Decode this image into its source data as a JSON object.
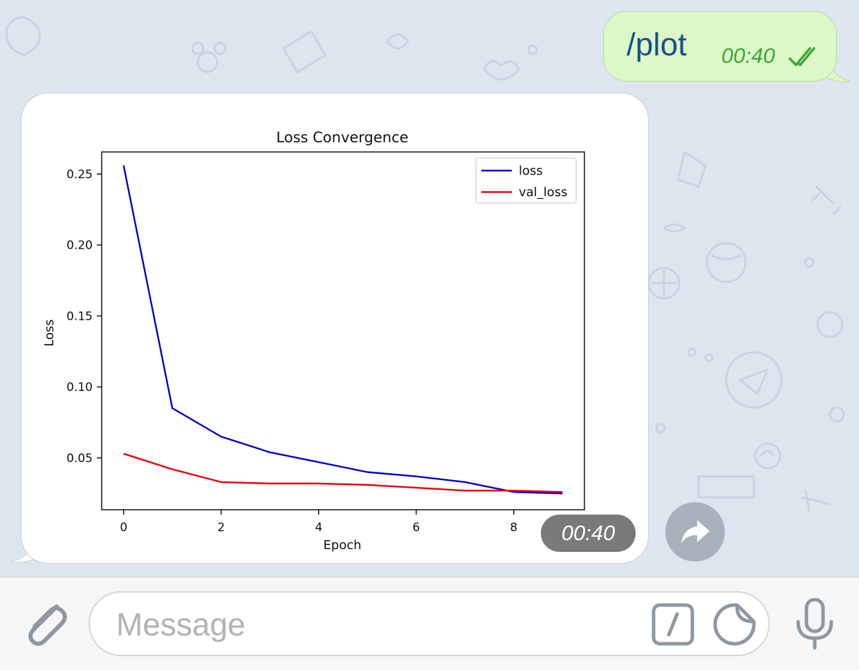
{
  "chat": {
    "outgoing": {
      "text": "/plot",
      "time": "00:40",
      "status_icon": "double-check-icon"
    },
    "incoming_photo": {
      "time": "00:40"
    }
  },
  "chart_data": {
    "type": "line",
    "title": "Loss Convergence",
    "xlabel": "Epoch",
    "ylabel": "Loss",
    "x": [
      0,
      1,
      2,
      3,
      4,
      5,
      6,
      7,
      8,
      9
    ],
    "xticks": [
      0,
      2,
      4,
      6,
      8
    ],
    "yticks": [
      0.05,
      0.1,
      0.15,
      0.2,
      0.25
    ],
    "ytick_labels": [
      "0.05",
      "0.10",
      "0.15",
      "0.20",
      "0.25"
    ],
    "xlim": [
      -0.45,
      9.45
    ],
    "ylim": [
      0.0135,
      0.2655
    ],
    "legend_position": "top-right",
    "grid": false,
    "series": [
      {
        "name": "loss",
        "color": "#0000cc",
        "values": [
          0.256,
          0.085,
          0.065,
          0.054,
          0.047,
          0.04,
          0.037,
          0.033,
          0.026,
          0.025
        ]
      },
      {
        "name": "val_loss",
        "color": "#e8000b",
        "values": [
          0.053,
          0.042,
          0.033,
          0.032,
          0.032,
          0.031,
          0.029,
          0.027,
          0.027,
          0.026
        ]
      }
    ]
  },
  "input": {
    "placeholder": "Message"
  },
  "icons": {
    "attach": "paperclip-icon",
    "commands": "slash-command-icon",
    "sticker": "sticker-icon",
    "mic": "microphone-icon",
    "forward": "forward-arrow-icon"
  },
  "colors": {
    "outgoing_bubble": "#dcf8c6",
    "outgoing_text": "#1a4f8c",
    "time_green": "#3aa73a",
    "chat_background": "#dde5ee"
  }
}
